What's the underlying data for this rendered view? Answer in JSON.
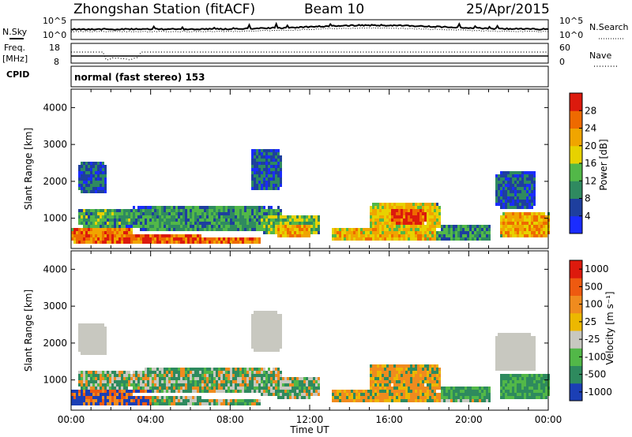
{
  "header": {
    "title": "Zhongshan Station (fitACF)",
    "beam": "Beam 10",
    "date": "25/Apr/2015"
  },
  "noise_panel": {
    "left_label": "N.Sky",
    "right_label": "N.Search",
    "left_ticks": [
      "10^5",
      "10^0"
    ],
    "right_ticks": [
      "10^5",
      "10^0"
    ]
  },
  "freq_panel": {
    "left_label_top": "Freq.",
    "left_label_unit": "[MHz]",
    "left_ticks": [
      "18",
      "8"
    ],
    "right_label": "Nave",
    "right_ticks": [
      "60",
      "0"
    ]
  },
  "cpid": {
    "label": "CPID",
    "text": "normal (fast stereo) 153"
  },
  "chart_data": [
    {
      "type": "heatmap",
      "quantity": "Power",
      "ylabel": "Slant Range [km]",
      "ylim": [
        180,
        4500
      ],
      "yticks": [
        1000,
        2000,
        3000,
        4000
      ],
      "xlim": [
        0,
        24
      ],
      "xticks": [
        "00:00",
        "04:00",
        "08:00",
        "12:00",
        "16:00",
        "20:00",
        "00:00"
      ],
      "colorbar": {
        "title": "Power [dB]",
        "ticks": [
          "4",
          "8",
          "12",
          "16",
          "20",
          "24",
          "28"
        ],
        "colors": [
          "#1a2cff",
          "#1e3f9e",
          "#2f8a60",
          "#52b848",
          "#e7d200",
          "#f0a500",
          "#ee6a00",
          "#dc1a0d"
        ]
      }
    },
    {
      "type": "heatmap",
      "quantity": "Velocity",
      "ylabel": "Slant Range [km]",
      "ylim": [
        180,
        4500
      ],
      "yticks": [
        1000,
        2000,
        3000,
        4000
      ],
      "xlim": [
        0,
        24
      ],
      "xticks": [
        "00:00",
        "04:00",
        "08:00",
        "12:00",
        "16:00",
        "20:00",
        "00:00"
      ],
      "xlabel": "Time UT",
      "colorbar": {
        "title": "Velocity [m s⁻¹]",
        "ticks": [
          "1000",
          "500",
          "100",
          "25",
          "-25",
          "-100",
          "-500",
          "-1000"
        ],
        "colors": [
          "#1b3fb5",
          "#2e8a5e",
          "#52b848",
          "#c8c8c0",
          "#ecb800",
          "#f08b1e",
          "#ee5a10",
          "#dd1a0d"
        ]
      }
    }
  ]
}
